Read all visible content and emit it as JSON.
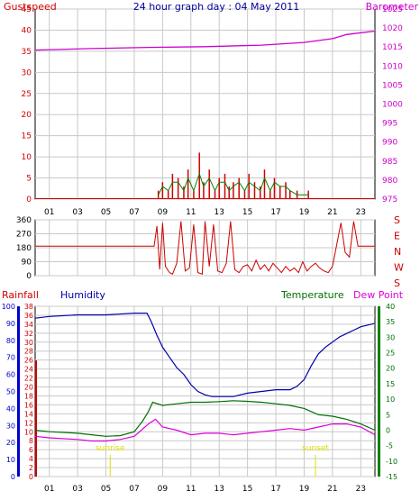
{
  "title": "24 hour graph day : 04 May 2011",
  "colors": {
    "gust": "#d00000",
    "baro": "#cc00cc",
    "wind_avg": "#008000",
    "wind_dir": "#cc0000",
    "humidity": "#0000aa",
    "temperature": "#007000",
    "dewpoint": "#dd00dd",
    "rainfall": "#cc0000",
    "sun_marker": "#dddd00",
    "grid": "#c8c8c8"
  },
  "labels": {
    "gustspeed": "Gustspeed",
    "barometer": "Barometer",
    "rainfall": "Rainfall",
    "humidity": "Humidity",
    "temperature": "Temperature",
    "dewpoint": "Dew Point",
    "sunrise": "sunrise",
    "sunset": "sunset"
  },
  "chart_data": [
    {
      "type": "line",
      "panel": "wind-baro",
      "x_ticks": [
        "01",
        "03",
        "05",
        "07",
        "09",
        "11",
        "13",
        "15",
        "17",
        "19",
        "21",
        "23"
      ],
      "ylim_left": [
        0,
        45
      ],
      "yticks_left": [
        "0",
        "5",
        "10",
        "15",
        "20",
        "25",
        "30",
        "35",
        "40",
        "45"
      ],
      "ylim_right": [
        975,
        1025
      ],
      "yticks_right": [
        "975",
        "980",
        "985",
        "990",
        "995",
        "1000",
        "1005",
        "1010",
        "1015",
        "1020",
        "1025"
      ],
      "barometer": {
        "x": [
          0,
          4,
          8,
          12,
          16,
          19,
          21,
          22,
          24
        ],
        "y": [
          1014.2,
          1014.6,
          1014.9,
          1015.1,
          1015.5,
          1016.2,
          1017.2,
          1018.3,
          1019.2
        ]
      },
      "gust": {
        "x": [
          8.7,
          9.0,
          9.4,
          9.7,
          10.1,
          10.5,
          10.8,
          11.2,
          11.6,
          11.9,
          12.3,
          12.7,
          13.0,
          13.4,
          13.7,
          14.0,
          14.4,
          14.8,
          15.1,
          15.5,
          15.9,
          16.2,
          16.6,
          16.9,
          17.3,
          17.7,
          18.0,
          18.5,
          19.3
        ],
        "y": [
          2,
          4,
          2,
          6,
          5,
          3,
          7,
          2,
          11,
          4,
          7,
          2,
          5,
          6,
          3,
          4,
          5,
          2,
          6,
          4,
          3,
          7,
          2,
          5,
          3,
          4,
          2,
          2,
          2
        ]
      },
      "wind_avg": {
        "x": [
          8.7,
          9.0,
          9.4,
          9.7,
          10.1,
          10.5,
          10.8,
          11.2,
          11.6,
          11.9,
          12.3,
          12.7,
          13.0,
          13.4,
          13.7,
          14.0,
          14.4,
          14.8,
          15.1,
          15.5,
          15.9,
          16.2,
          16.6,
          16.9,
          17.3,
          17.7,
          18.0,
          18.5,
          19.3
        ],
        "y": [
          1,
          3,
          2,
          4,
          4,
          2,
          5,
          2,
          6,
          3,
          5,
          2,
          4,
          4,
          2,
          3,
          4,
          2,
          4,
          3,
          2,
          5,
          2,
          4,
          3,
          3,
          2,
          1,
          1
        ]
      }
    },
    {
      "type": "line",
      "panel": "wind-direction",
      "ylim": [
        0,
        360
      ],
      "yticks": [
        "0",
        "90",
        "180",
        "270",
        "360"
      ],
      "compass": [
        "S",
        "E",
        "N",
        "W",
        "S"
      ],
      "direction": {
        "x": [
          0,
          8.4,
          8.6,
          8.8,
          9.0,
          9.2,
          9.5,
          9.7,
          10.0,
          10.3,
          10.6,
          10.9,
          11.2,
          11.5,
          11.8,
          12.0,
          12.3,
          12.6,
          12.9,
          13.2,
          13.5,
          13.8,
          14.1,
          14.4,
          14.7,
          15.0,
          15.3,
          15.6,
          15.9,
          16.2,
          16.5,
          16.8,
          17.1,
          17.4,
          17.7,
          18.0,
          18.3,
          18.6,
          18.9,
          19.2,
          19.5,
          19.8,
          20.1,
          20.4,
          20.7,
          21.0,
          21.3,
          21.6,
          21.9,
          22.2,
          22.5,
          22.8,
          23.1,
          24
        ],
        "y": [
          190,
          190,
          320,
          40,
          340,
          60,
          20,
          10,
          80,
          350,
          30,
          50,
          330,
          20,
          10,
          350,
          60,
          330,
          30,
          20,
          80,
          350,
          40,
          20,
          60,
          70,
          30,
          100,
          40,
          70,
          30,
          80,
          50,
          20,
          60,
          30,
          50,
          20,
          90,
          30,
          60,
          80,
          50,
          30,
          20,
          60,
          200,
          340,
          150,
          120,
          350,
          190,
          190,
          190
        ]
      }
    },
    {
      "type": "line",
      "panel": "humidity-temp",
      "ylim_humidity": [
        0,
        100
      ],
      "yticks_humidity": [
        "0",
        "10",
        "20",
        "30",
        "40",
        "50",
        "60",
        "70",
        "80",
        "90",
        "100"
      ],
      "ylim_rain": [
        0,
        38
      ],
      "yticks_rain": [
        "0",
        "2",
        "4",
        "6",
        "8",
        "10",
        "12",
        "14",
        "16",
        "18",
        "20",
        "22",
        "24",
        "26",
        "28",
        "30",
        "32",
        "34",
        "36",
        "38"
      ],
      "ylim_temp": [
        -15,
        40
      ],
      "yticks_temp": [
        "-15",
        "-10",
        "-5",
        "0",
        "5",
        "10",
        "15",
        "20",
        "25",
        "30",
        "35",
        "40"
      ],
      "humidity": {
        "x": [
          0,
          1,
          3,
          5,
          7,
          7.9,
          8.2,
          8.6,
          9.0,
          9.5,
          10.0,
          10.5,
          11.0,
          11.5,
          12.0,
          12.5,
          13.0,
          13.5,
          14.0,
          15.0,
          16.0,
          17.0,
          18.0,
          18.5,
          19.0,
          19.5,
          20.0,
          20.5,
          21.0,
          21.5,
          22.0,
          22.5,
          23.0,
          23.5,
          24
        ],
        "y": [
          93,
          94,
          95,
          95,
          96,
          96,
          91,
          83,
          76,
          70,
          64,
          60,
          54,
          50,
          48,
          47,
          47,
          47,
          47,
          49,
          50,
          51,
          51,
          53,
          57,
          65,
          72,
          76,
          79,
          82,
          84,
          86,
          88,
          89,
          90
        ]
      },
      "temperature": {
        "x": [
          0,
          1,
          3,
          4,
          5,
          6,
          7,
          7.6,
          8.0,
          8.3,
          9,
          10,
          11,
          12,
          13,
          14,
          15,
          16,
          17,
          18,
          19,
          20,
          21,
          22,
          23,
          24
        ],
        "y": [
          0,
          -0.5,
          -1,
          -1.5,
          -2,
          -1.8,
          -0.5,
          3,
          6,
          9,
          8,
          8.5,
          9,
          9,
          9.2,
          9.5,
          9.3,
          9,
          8.5,
          8,
          7,
          5,
          4.5,
          3.5,
          2,
          0
        ]
      },
      "dewpoint": {
        "x": [
          0,
          1,
          3,
          4,
          5,
          6,
          7,
          7.5,
          8.0,
          8.5,
          9,
          10,
          11,
          12,
          13,
          14,
          15,
          16,
          17,
          18,
          19,
          20,
          21,
          22,
          23,
          24
        ],
        "y": [
          -2,
          -2.5,
          -3,
          -3.5,
          -3.5,
          -3,
          -2,
          0,
          2,
          3.5,
          1,
          0,
          -1.5,
          -1,
          -1,
          -1.5,
          -1,
          -0.5,
          0,
          0.5,
          0,
          1,
          2,
          2,
          1,
          -1.5
        ]
      },
      "sunrise_hour": 5.3,
      "sunset_hour": 19.8
    }
  ]
}
